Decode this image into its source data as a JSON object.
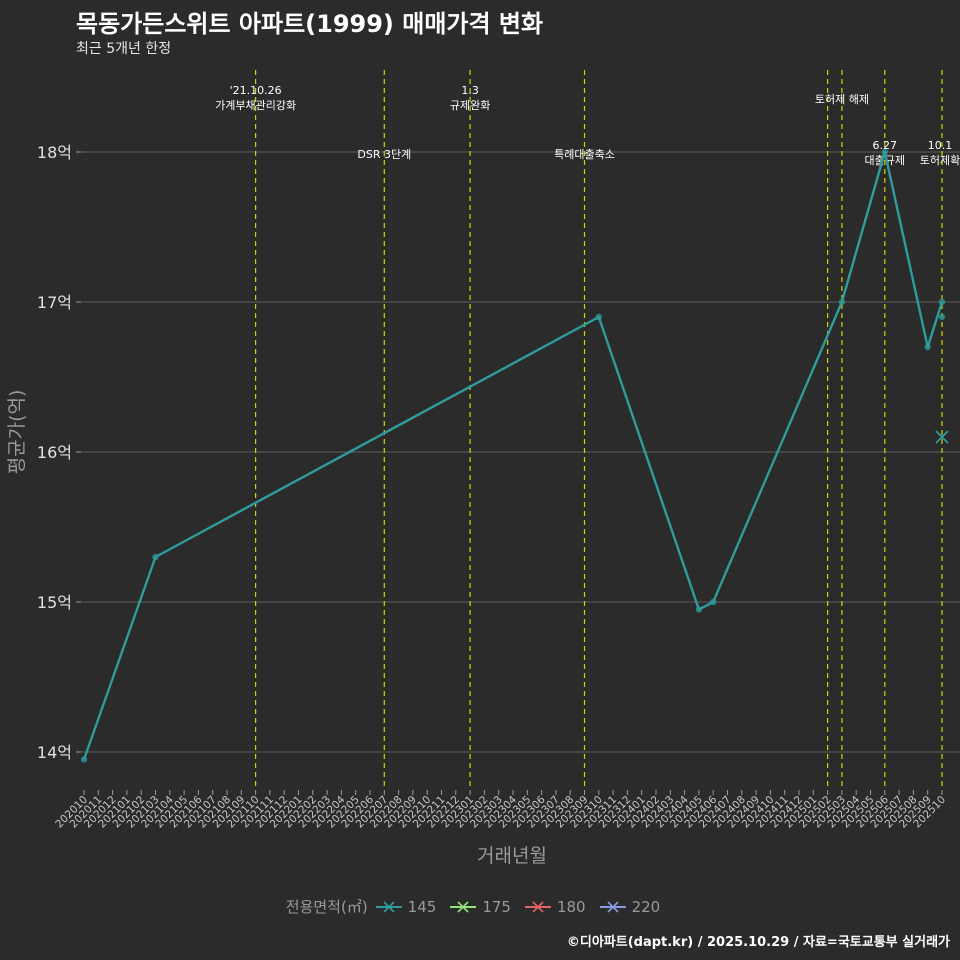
{
  "title": "목동가든스위트 아파트(1999) 매매가격 변화",
  "subtitle": "최근 5개년 한정",
  "footer": "©디아파트(dapt.kr) / 2025.10.29 / 자료=국토교통부 실거래가",
  "colors": {
    "background": "#2b2b2b",
    "grid": "#5e5e5e",
    "vline": "#d4d400",
    "series": {
      "145": "#2f9c9c",
      "175": "#8fe37a",
      "180": "#e06464",
      "220": "#8899dd"
    }
  },
  "chart_data": {
    "type": "line",
    "title": "목동가든스위트 아파트(1999) 매매가격 변화",
    "xlabel": "거래년월",
    "ylabel": "평균가(억)",
    "ylim": [
      13.75,
      18.5
    ],
    "yticks": [
      14,
      15,
      16,
      17,
      18
    ],
    "ytick_labels": [
      "14억",
      "15억",
      "16억",
      "17억",
      "18억"
    ],
    "x_categories": [
      "202010",
      "202011",
      "202012",
      "202101",
      "202102",
      "202103",
      "202104",
      "202105",
      "202106",
      "202107",
      "202108",
      "202109",
      "202110",
      "202111",
      "202112",
      "202201",
      "202202",
      "202203",
      "202204",
      "202205",
      "202206",
      "202207",
      "202208",
      "202209",
      "202210",
      "202211",
      "202212",
      "202301",
      "202302",
      "202303",
      "202304",
      "202305",
      "202306",
      "202307",
      "202308",
      "202309",
      "202310",
      "202311",
      "202312",
      "202401",
      "202402",
      "202403",
      "202404",
      "202405",
      "202406",
      "202407",
      "202408",
      "202409",
      "202410",
      "202411",
      "202412",
      "202501",
      "202502",
      "202503",
      "202504",
      "202505",
      "202506",
      "202507",
      "202508",
      "202509",
      "202510"
    ],
    "series": [
      {
        "name": "145",
        "points": [
          {
            "x": "202010",
            "y": 13.95
          },
          {
            "x": "202103",
            "y": 15.3
          },
          {
            "x": "202310",
            "y": 16.9
          },
          {
            "x": "202405",
            "y": 14.95
          },
          {
            "x": "202406",
            "y": 15.0
          },
          {
            "x": "202503",
            "y": 17.0
          },
          {
            "x": "202506",
            "y": 18.0
          },
          {
            "x": "202509",
            "y": 16.7
          },
          {
            "x": "202510",
            "y": 17.0
          }
        ],
        "extra_points": [
          {
            "x": "202510",
            "y": 16.9,
            "marker": "dot"
          },
          {
            "x": "202510",
            "y": 16.1,
            "marker": "x"
          }
        ]
      }
    ],
    "legend_title": "전용면적(㎡)",
    "legend_entries": [
      "145",
      "175",
      "180",
      "220"
    ],
    "events": [
      {
        "x": "202110",
        "lines": [
          "'21.10.26",
          "가계부채관리강화"
        ],
        "level": "top"
      },
      {
        "x": "202207",
        "lines": [
          "DSR 3단계"
        ],
        "level": "mid"
      },
      {
        "x": "202301",
        "lines": [
          "1.3",
          "규제완화"
        ],
        "level": "top"
      },
      {
        "x": "202309",
        "lines": [
          "특례대출축소"
        ],
        "level": "mid"
      },
      {
        "x": "202502",
        "lines": [],
        "level": "none"
      },
      {
        "x": "202503",
        "lines": [
          "토허제 해제"
        ],
        "level": "upper"
      },
      {
        "x": "202506",
        "lines": [
          "6.27",
          "대출규제"
        ],
        "level": "mid"
      },
      {
        "x": "202510",
        "lines": [
          "10.1",
          "토허제확"
        ],
        "level": "mid"
      }
    ]
  }
}
